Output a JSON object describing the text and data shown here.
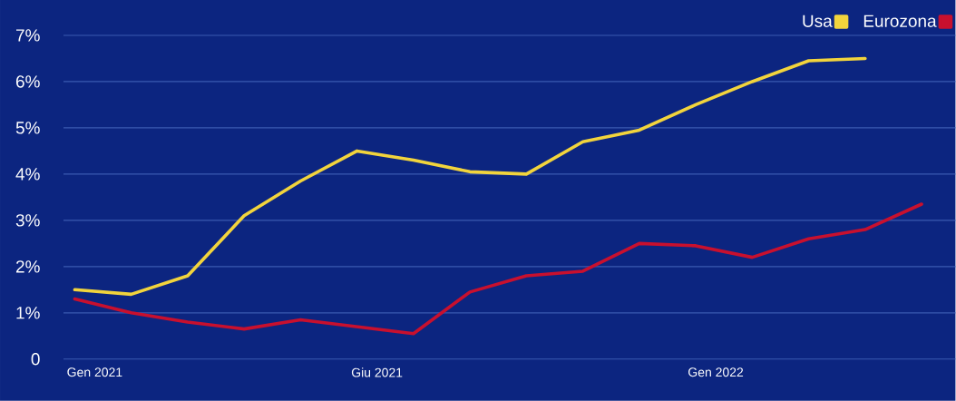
{
  "chart_data": {
    "type": "line",
    "categories": [
      "Gen 2021",
      null,
      null,
      null,
      null,
      "Giu 2021",
      null,
      null,
      null,
      null,
      null,
      "Gen 2022",
      null,
      null,
      null,
      null
    ],
    "series": [
      {
        "name": "Usa",
        "color": "#f2d43c",
        "values": [
          1.5,
          1.4,
          1.8,
          3.1,
          3.85,
          4.5,
          4.3,
          4.05,
          4.0,
          4.7,
          4.95,
          5.5,
          6.0,
          6.45,
          6.5,
          null
        ]
      },
      {
        "name": "Eurozona",
        "color": "#c8102e",
        "values": [
          1.3,
          1.0,
          0.8,
          0.65,
          0.85,
          0.7,
          0.55,
          1.45,
          1.8,
          1.9,
          2.5,
          2.45,
          2.2,
          2.6,
          2.8,
          3.35
        ]
      }
    ],
    "ylim": [
      0,
      7
    ],
    "yticks": [
      0,
      {
        "value": 1,
        "label": "1%"
      },
      {
        "value": 2,
        "label": "2%"
      },
      {
        "value": 3,
        "label": "3%"
      },
      {
        "value": 4,
        "label": "4%"
      },
      {
        "value": 5,
        "label": "5%"
      },
      {
        "value": 6,
        "label": "6%"
      },
      {
        "value": 7,
        "label": "7%"
      }
    ],
    "grid": "y",
    "legend": "top right",
    "marker": "none",
    "line_style": "solid"
  }
}
